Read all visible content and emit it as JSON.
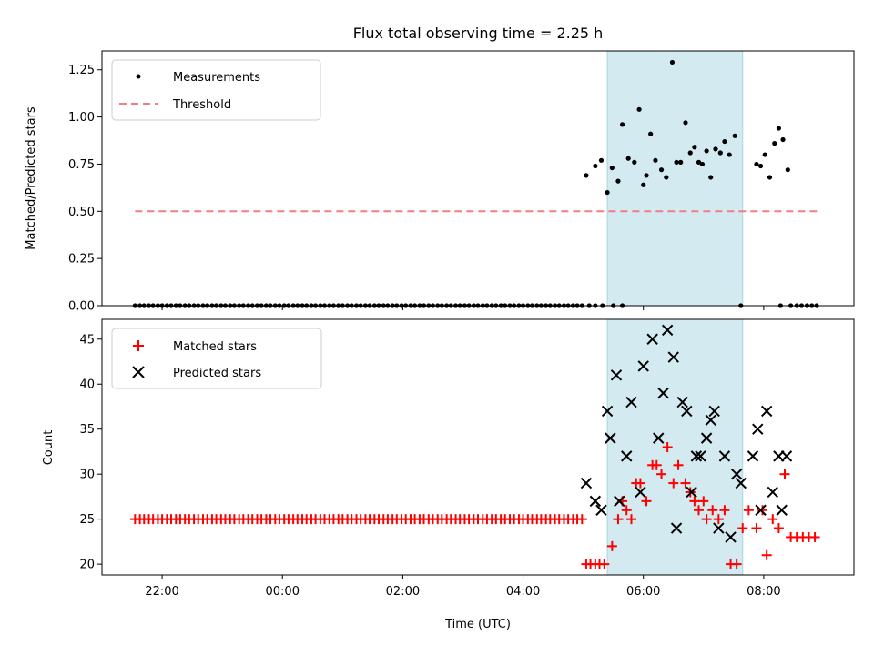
{
  "chart_data": [
    {
      "type": "scatter",
      "title": "Flux total observing time = 2.25 h",
      "xlabel": "",
      "ylabel": "Matched/Predicted stars",
      "ylim": [
        0.0,
        1.35
      ],
      "yticks": [
        "0.00",
        "0.25",
        "0.50",
        "0.75",
        "1.00",
        "1.25"
      ],
      "x_unit": "hours since 00:00 UTC (negative = previous evening)",
      "xlim": [
        -3.0,
        9.5
      ],
      "highlight_span": [
        5.4,
        7.65
      ],
      "highlight_color": "#d3eaf0",
      "legend_position": "top-left",
      "series": [
        {
          "name": "Measurements",
          "marker": "dot",
          "color": "#000000",
          "x": [
            -2.45,
            -2.37,
            -2.3,
            -2.22,
            -2.15,
            -2.07,
            -2.0,
            -1.92,
            -1.85,
            -1.77,
            -1.7,
            -1.62,
            -1.55,
            -1.47,
            -1.4,
            -1.32,
            -1.25,
            -1.17,
            -1.1,
            -1.02,
            -0.95,
            -0.87,
            -0.8,
            -0.72,
            -0.65,
            -0.57,
            -0.5,
            -0.42,
            -0.35,
            -0.27,
            -0.2,
            -0.12,
            -0.05,
            0.03,
            0.1,
            0.18,
            0.25,
            0.33,
            0.4,
            0.48,
            0.55,
            0.63,
            0.7,
            0.78,
            0.85,
            0.93,
            1.0,
            1.08,
            1.15,
            1.23,
            1.3,
            1.38,
            1.45,
            1.53,
            1.6,
            1.68,
            1.75,
            1.83,
            1.9,
            1.98,
            2.05,
            2.13,
            2.2,
            2.28,
            2.35,
            2.43,
            2.5,
            2.58,
            2.65,
            2.73,
            2.8,
            2.88,
            2.95,
            3.03,
            3.1,
            3.18,
            3.25,
            3.33,
            3.4,
            3.48,
            3.55,
            3.63,
            3.7,
            3.78,
            3.85,
            3.93,
            4.0,
            4.08,
            4.15,
            4.23,
            4.3,
            4.38,
            4.45,
            4.53,
            4.6,
            4.68,
            4.75,
            4.83,
            4.9,
            4.98,
            5.1,
            5.2,
            5.32,
            5.5,
            5.65,
            8.28,
            8.45,
            8.55,
            8.63,
            8.72,
            8.8,
            8.88,
            5.05,
            5.2,
            5.3,
            5.4,
            5.48,
            5.58,
            5.65,
            5.75,
            5.85,
            5.93,
            6.0,
            6.05,
            6.12,
            6.2,
            6.3,
            6.38,
            6.48,
            6.55,
            6.62,
            6.7,
            6.78,
            6.85,
            6.92,
            6.98,
            7.05,
            7.12,
            7.2,
            7.28,
            7.35,
            7.43,
            7.52,
            7.62,
            7.88,
            7.95,
            8.02,
            8.1,
            8.18,
            8.25,
            8.32,
            8.4
          ],
          "y": [
            0,
            0,
            0,
            0,
            0,
            0,
            0,
            0,
            0,
            0,
            0,
            0,
            0,
            0,
            0,
            0,
            0,
            0,
            0,
            0,
            0,
            0,
            0,
            0,
            0,
            0,
            0,
            0,
            0,
            0,
            0,
            0,
            0,
            0,
            0,
            0,
            0,
            0,
            0,
            0,
            0,
            0,
            0,
            0,
            0,
            0,
            0,
            0,
            0,
            0,
            0,
            0,
            0,
            0,
            0,
            0,
            0,
            0,
            0,
            0,
            0,
            0,
            0,
            0,
            0,
            0,
            0,
            0,
            0,
            0,
            0,
            0,
            0,
            0,
            0,
            0,
            0,
            0,
            0,
            0,
            0,
            0,
            0,
            0,
            0,
            0,
            0,
            0,
            0,
            0,
            0,
            0,
            0,
            0,
            0,
            0,
            0,
            0,
            0,
            0,
            0,
            0,
            0,
            0,
            0,
            0,
            0,
            0,
            0,
            0,
            0,
            0,
            0.69,
            0.74,
            0.77,
            0.6,
            0.73,
            0.66,
            0.96,
            0.78,
            0.76,
            1.04,
            0.64,
            0.69,
            0.91,
            0.77,
            0.72,
            0.68,
            1.29,
            0.76,
            0.76,
            0.97,
            0.81,
            0.84,
            0.76,
            0.75,
            0.82,
            0.68,
            0.83,
            0.81,
            0.87,
            0.8,
            0.9,
            0.0,
            0.75,
            0.74,
            0.8,
            0.68,
            0.86,
            0.94,
            0.88,
            0.72
          ]
        },
        {
          "name": "Threshold",
          "marker": "dashed-line",
          "color": "#f08080",
          "x": [
            -2.45,
            8.9
          ],
          "y": [
            0.5,
            0.5
          ]
        }
      ]
    },
    {
      "type": "scatter",
      "title": "",
      "xlabel": "Time (UTC)",
      "ylabel": "Count",
      "ylim": [
        18.8,
        47.2
      ],
      "yticks": [
        "20",
        "25",
        "30",
        "35",
        "40",
        "45"
      ],
      "xticks": [
        {
          "value": -2,
          "label": "22:00"
        },
        {
          "value": 0,
          "label": "00:00"
        },
        {
          "value": 2,
          "label": "02:00"
        },
        {
          "value": 4,
          "label": "04:00"
        },
        {
          "value": 6,
          "label": "06:00"
        },
        {
          "value": 8,
          "label": "08:00"
        }
      ],
      "xlim": [
        -3.0,
        9.5
      ],
      "highlight_span": [
        5.4,
        7.65
      ],
      "highlight_color": "#d3eaf0",
      "legend_position": "top-left",
      "series": [
        {
          "name": "Matched stars",
          "marker": "plus",
          "color": "#ff0000",
          "x": [
            -2.45,
            -2.37,
            -2.3,
            -2.22,
            -2.15,
            -2.07,
            -2.0,
            -1.92,
            -1.85,
            -1.77,
            -1.7,
            -1.62,
            -1.55,
            -1.47,
            -1.4,
            -1.32,
            -1.25,
            -1.17,
            -1.1,
            -1.02,
            -0.95,
            -0.87,
            -0.8,
            -0.72,
            -0.65,
            -0.57,
            -0.5,
            -0.42,
            -0.35,
            -0.27,
            -0.2,
            -0.12,
            -0.05,
            0.03,
            0.1,
            0.18,
            0.25,
            0.33,
            0.4,
            0.48,
            0.55,
            0.63,
            0.7,
            0.78,
            0.85,
            0.93,
            1.0,
            1.08,
            1.15,
            1.23,
            1.3,
            1.38,
            1.45,
            1.53,
            1.6,
            1.68,
            1.75,
            1.83,
            1.9,
            1.98,
            2.05,
            2.13,
            2.2,
            2.28,
            2.35,
            2.43,
            2.5,
            2.58,
            2.65,
            2.73,
            2.8,
            2.88,
            2.95,
            3.03,
            3.1,
            3.18,
            3.25,
            3.33,
            3.4,
            3.48,
            3.55,
            3.63,
            3.7,
            3.78,
            3.85,
            3.93,
            4.0,
            4.08,
            4.15,
            4.23,
            4.3,
            4.38,
            4.45,
            4.53,
            4.6,
            4.68,
            4.75,
            4.83,
            4.9,
            4.98,
            5.05,
            5.12,
            5.2,
            5.27,
            5.35,
            5.48,
            5.58,
            5.65,
            5.72,
            5.8,
            5.88,
            5.95,
            6.05,
            6.15,
            6.22,
            6.3,
            6.4,
            6.5,
            6.58,
            6.7,
            6.78,
            6.85,
            6.92,
            7.0,
            7.05,
            7.15,
            7.25,
            7.35,
            7.45,
            7.55,
            7.65,
            7.75,
            7.88,
            7.98,
            8.05,
            8.15,
            8.25,
            8.35,
            8.45,
            8.55,
            8.65,
            8.75,
            8.85
          ],
          "y": [
            25,
            25,
            25,
            25,
            25,
            25,
            25,
            25,
            25,
            25,
            25,
            25,
            25,
            25,
            25,
            25,
            25,
            25,
            25,
            25,
            25,
            25,
            25,
            25,
            25,
            25,
            25,
            25,
            25,
            25,
            25,
            25,
            25,
            25,
            25,
            25,
            25,
            25,
            25,
            25,
            25,
            25,
            25,
            25,
            25,
            25,
            25,
            25,
            25,
            25,
            25,
            25,
            25,
            25,
            25,
            25,
            25,
            25,
            25,
            25,
            25,
            25,
            25,
            25,
            25,
            25,
            25,
            25,
            25,
            25,
            25,
            25,
            25,
            25,
            25,
            25,
            25,
            25,
            25,
            25,
            25,
            25,
            25,
            25,
            25,
            25,
            25,
            25,
            25,
            25,
            25,
            25,
            25,
            25,
            25,
            25,
            25,
            25,
            25,
            25,
            20,
            20,
            20,
            20,
            20,
            22,
            25,
            27,
            26,
            25,
            29,
            29,
            27,
            31,
            31,
            30,
            33,
            29,
            31,
            29,
            28,
            27,
            26,
            27,
            25,
            26,
            25,
            26,
            20,
            20,
            24,
            26,
            24,
            26,
            21,
            25,
            24,
            30,
            23,
            23,
            23,
            23,
            23
          ]
        },
        {
          "name": "Predicted stars",
          "marker": "x",
          "color": "#000000",
          "x": [
            5.05,
            5.2,
            5.3,
            5.4,
            5.45,
            5.55,
            5.6,
            5.72,
            5.8,
            5.95,
            6.0,
            6.15,
            6.25,
            6.33,
            6.4,
            6.5,
            6.55,
            6.65,
            6.72,
            6.8,
            6.88,
            6.95,
            7.05,
            7.12,
            7.18,
            7.25,
            7.35,
            7.45,
            7.55,
            7.62,
            7.82,
            7.9,
            7.95,
            8.05,
            8.15,
            8.25,
            8.3,
            8.38
          ],
          "y": [
            29,
            27,
            26,
            37,
            34,
            41,
            27,
            32,
            38,
            28,
            42,
            45,
            34,
            39,
            46,
            43,
            24,
            38,
            37,
            28,
            32,
            32,
            34,
            36,
            37,
            24,
            32,
            23,
            30,
            29,
            32,
            35,
            26,
            37,
            28,
            32,
            26,
            32
          ]
        }
      ]
    }
  ]
}
